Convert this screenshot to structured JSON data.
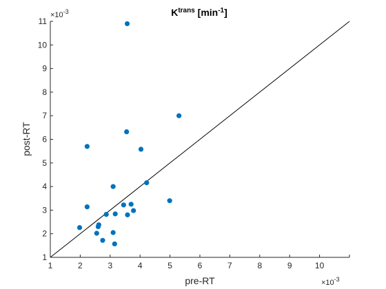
{
  "chart_data": {
    "type": "scatter",
    "title": {
      "base": "K",
      "superscript": "trans",
      "unit_open": " [min",
      "unit_superscript": "-1",
      "unit_close": "]"
    },
    "xlabel": "pre-RT",
    "ylabel": "post-RT",
    "x_exponent": {
      "base": "×10",
      "power": "-3"
    },
    "y_exponent": {
      "base": "×10",
      "power": "-3"
    },
    "xlim": [
      1,
      11
    ],
    "ylim": [
      1,
      11
    ],
    "x_ticks": [
      "1",
      "2",
      "3",
      "4",
      "5",
      "6",
      "7",
      "8",
      "9",
      "10"
    ],
    "y_ticks": [
      "1",
      "2",
      "3",
      "4",
      "5",
      "6",
      "7",
      "8",
      "9",
      "10",
      "11"
    ],
    "tick_values": [
      1,
      2,
      3,
      4,
      5,
      6,
      7,
      8,
      9,
      10,
      11
    ],
    "grid": false,
    "identity_line": true,
    "marker_color": "#0072BD",
    "line_color": "#000000",
    "points": [
      {
        "x": 3.57,
        "y": 10.9
      },
      {
        "x": 5.3,
        "y": 7.0
      },
      {
        "x": 3.55,
        "y": 6.32
      },
      {
        "x": 2.23,
        "y": 5.7
      },
      {
        "x": 4.03,
        "y": 5.58
      },
      {
        "x": 4.22,
        "y": 4.16
      },
      {
        "x": 3.1,
        "y": 4.0
      },
      {
        "x": 4.99,
        "y": 3.4
      },
      {
        "x": 2.23,
        "y": 3.14
      },
      {
        "x": 3.45,
        "y": 3.22
      },
      {
        "x": 3.7,
        "y": 3.25
      },
      {
        "x": 3.78,
        "y": 2.98
      },
      {
        "x": 2.87,
        "y": 2.82
      },
      {
        "x": 3.17,
        "y": 2.84
      },
      {
        "x": 3.58,
        "y": 2.8
      },
      {
        "x": 2.62,
        "y": 2.38
      },
      {
        "x": 2.6,
        "y": 2.3
      },
      {
        "x": 1.98,
        "y": 2.26
      },
      {
        "x": 2.55,
        "y": 2.02
      },
      {
        "x": 3.1,
        "y": 2.05
      },
      {
        "x": 2.75,
        "y": 1.72
      },
      {
        "x": 3.15,
        "y": 1.57
      }
    ]
  }
}
